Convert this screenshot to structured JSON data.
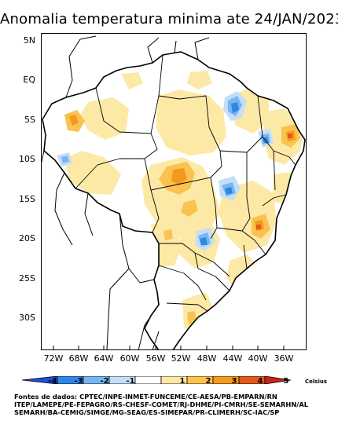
{
  "title": "Anomalia temperatura minima ate 24/JAN/2023",
  "map": {
    "lat_labels": [
      "5N",
      "EQ",
      "5S",
      "10S",
      "15S",
      "20S",
      "25S",
      "30S"
    ],
    "lon_labels": [
      "72W",
      "68W",
      "64W",
      "60W",
      "56W",
      "52W",
      "48W",
      "44W",
      "40W",
      "36W"
    ]
  },
  "colorbar": {
    "ticks": [
      "-4",
      "-3",
      "-2",
      "-1",
      "1",
      "2",
      "3",
      "4",
      "5"
    ],
    "unit": "Celsius",
    "colors": [
      "#1e4fd8",
      "#2f86e6",
      "#78b6ee",
      "#c3dff7",
      "#ffffff",
      "#fde9a6",
      "#f9c251",
      "#f39a1c",
      "#e3581b",
      "#c62616"
    ]
  },
  "credits": [
    "Fontes de dados: CPTEC/INPE-INMET-FUNCEME/CE-AESA/PB-EMPARN/RN",
    "ITEP/LAMEPE/PE-FEPAGRO/RS-CHESF-COMET/RJ-DHME/PI-CMRH/SE-SEMARHN/AL",
    "SEMARH/BA-CEMIG/SIMGE/MG-SEAG/ES-SIMEPAR/PR-CLIMERH/SC-IAC/SP"
  ]
}
